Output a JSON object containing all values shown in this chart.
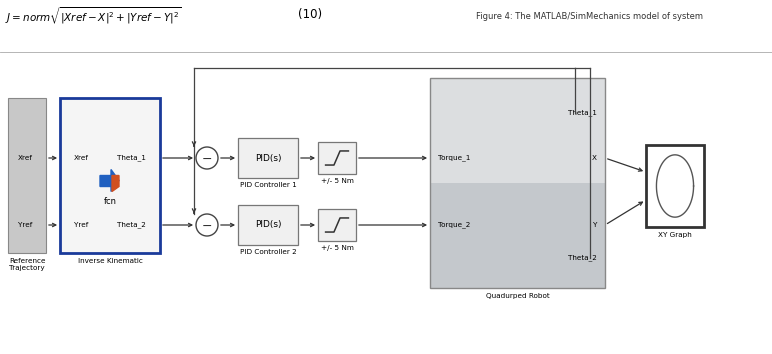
{
  "fig_width": 7.72,
  "fig_height": 3.54,
  "dpi": 100,
  "header_text": "Figure 4: The MATLAB/SimMechanics model of system",
  "bg_color": "#ffffff",
  "ref_traj_label": "Reference\nTrajectory",
  "inv_kin_label": "Inverse Kinematic",
  "quad_label": "Quadurped Robot",
  "xy_graph_label": "XY Graph",
  "pid1_label": "PID Controller 1",
  "pid2_label": "PID Controller 2",
  "sat1_label": "+/- 5 Nm",
  "sat2_label": "+/- 5 Nm",
  "inv_kin_edge": "#1a3a9a",
  "block_gray": "#d0d0d0",
  "block_light": "#f2f2f2",
  "quad_gray": "#c8ccd0"
}
